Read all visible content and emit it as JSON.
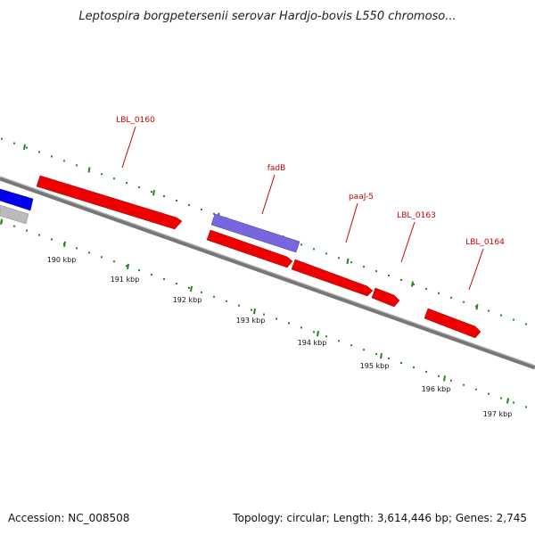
{
  "title": "Leptospira borgpetersenii serovar Hardjo-bovis L550 chromoso...",
  "footer": {
    "accession": "Accession: NC_008508",
    "summary": "Topology: circular; Length: 3,614,446 bp; Genes: 2,745"
  },
  "colors": {
    "forward_gene": "#ee0000",
    "feature_purple": "#7766dd",
    "blue_gene": "#0000ee",
    "grey_gene": "#bbbbbb",
    "backbone": "#777777",
    "tick": "#1a8a1a",
    "label": "#cc0000"
  },
  "scale_ticks": [
    {
      "label": "190 kbp"
    },
    {
      "label": "191 kbp"
    },
    {
      "label": "192 kbp"
    },
    {
      "label": "193 kbp"
    },
    {
      "label": "194 kbp"
    },
    {
      "label": "195 kbp"
    },
    {
      "label": "196 kbp"
    },
    {
      "label": "197 kbp"
    }
  ],
  "gene_labels": {
    "lbl0160": "LBL_0160",
    "fadB": "fadB",
    "paaJ5": "paaJ-5",
    "lbl0163": "LBL_0163",
    "lbl0164": "LBL_0164"
  }
}
